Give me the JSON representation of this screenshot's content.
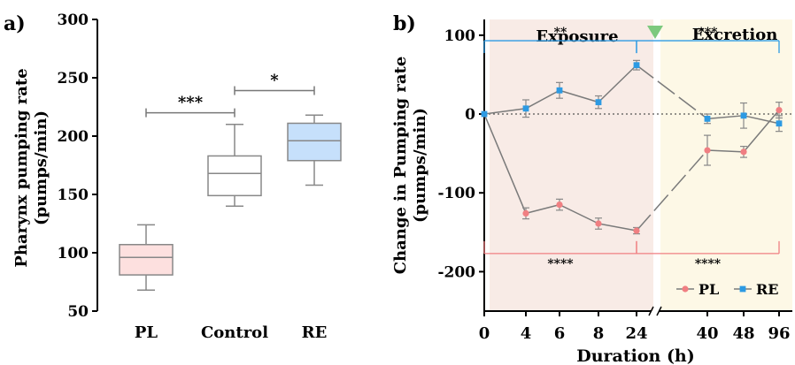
{
  "chart_data": [
    {
      "type": "box",
      "panel_label": "a)",
      "ylabel": "Pharynx pumping rate (pumps/min)",
      "ylabel_line1": "Pharynx pumping rate",
      "ylabel_line2": "(pumps/min)",
      "ylim": [
        50,
        300
      ],
      "yticks": [
        50,
        100,
        150,
        200,
        250,
        300
      ],
      "categories": [
        "PL",
        "Control",
        "RE"
      ],
      "boxes": [
        {
          "name": "PL",
          "min": 68,
          "q1": 81,
          "median": 96,
          "q3": 107,
          "max": 124,
          "color": "#fde0df",
          "stroke": "#888888"
        },
        {
          "name": "Control",
          "min": 140,
          "q1": 149,
          "median": 168,
          "q3": 183,
          "max": 210,
          "color": "#ffffff",
          "stroke": "#888888"
        },
        {
          "name": "RE",
          "min": 158,
          "q1": 179,
          "median": 196,
          "q3": 211,
          "max": 218,
          "color": "#c6e0fb",
          "stroke": "#888888"
        }
      ],
      "significance": [
        {
          "from": "PL",
          "to": "Control",
          "y": 220,
          "label": "***"
        },
        {
          "from": "Control",
          "to": "RE",
          "y": 239,
          "label": "*"
        }
      ]
    },
    {
      "type": "line",
      "panel_label": "b)",
      "xlabel": "Duration (h)",
      "ylabel": "Change in Pumping rate (pumps/min)",
      "ylabel_line1": "Change in Pumping rate",
      "ylabel_line2": "(pumps/min)",
      "ylim": [
        -250,
        120
      ],
      "yticks": [
        -200,
        -100,
        0,
        100
      ],
      "x": [
        "0",
        "4",
        "6",
        "8",
        "24",
        "40",
        "48",
        "96"
      ],
      "axis_break_between": [
        "24",
        "40"
      ],
      "phases": [
        {
          "label": "Exposure",
          "from": "0",
          "to": "24",
          "color": "#f8ebe6"
        },
        {
          "label": "Excretion",
          "from": "40",
          "to": "96",
          "color": "#fdf8e6"
        }
      ],
      "phase_marker_color": "#7dc97f",
      "series": [
        {
          "name": "PL",
          "color": "#f07f82",
          "marker": "circle",
          "values": [
            0,
            -126,
            -115,
            -139,
            -148,
            -46,
            -48,
            5
          ],
          "errors": [
            0,
            7,
            7,
            7,
            4,
            19,
            7,
            10
          ]
        },
        {
          "name": "RE",
          "color": "#2c9ae3",
          "marker": "square",
          "values": [
            0,
            7,
            30,
            15,
            62,
            -6,
            -2,
            -12
          ],
          "errors": [
            0,
            11,
            10,
            8,
            6,
            6,
            16,
            10
          ]
        }
      ],
      "brackets": [
        {
          "series": "RE",
          "y": 93,
          "from": "0",
          "to": "24",
          "label": "**",
          "color": "#2c9ae3"
        },
        {
          "series": "RE",
          "y": 93,
          "from": "24",
          "to": "96",
          "label": "***",
          "color": "#2c9ae3"
        },
        {
          "series": "PL",
          "y": -177,
          "from": "0",
          "to": "24",
          "label": "****",
          "color": "#f07f82"
        },
        {
          "series": "PL",
          "y": -177,
          "from": "24",
          "to": "96",
          "label": "****",
          "color": "#f07f82"
        }
      ],
      "legend_position": "bottom-right",
      "zero_line": "dotted"
    }
  ]
}
